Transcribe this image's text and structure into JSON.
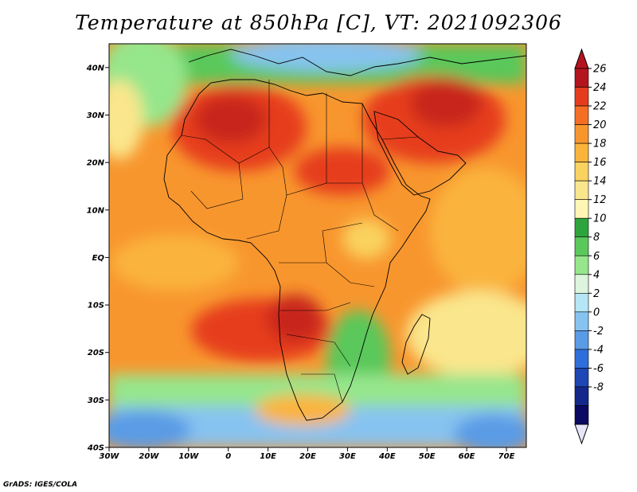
{
  "title": "Temperature at 850hPa [C], VT: 2021092306",
  "credit": "GrADS: IGES/COLA",
  "map": {
    "lon_range": [
      -30,
      75
    ],
    "lat_range": [
      -40,
      45
    ],
    "lat_ticks": [
      "40N",
      "30N",
      "20N",
      "10N",
      "EQ",
      "10S",
      "20S",
      "30S",
      "40S"
    ],
    "lon_ticks": [
      "30W",
      "20W",
      "10W",
      "0",
      "10E",
      "20E",
      "30E",
      "40E",
      "50E",
      "60E",
      "70E"
    ]
  },
  "colorbar": {
    "levels": [
      "26",
      "24",
      "22",
      "20",
      "18",
      "16",
      "14",
      "12",
      "10",
      "8",
      "6",
      "4",
      "2",
      "0",
      "-2",
      "-4",
      "-6",
      "-8"
    ],
    "colors": [
      "#b4141e",
      "#e63c1e",
      "#f56e23",
      "#f8962e",
      "#fab43c",
      "#fad25f",
      "#fae68c",
      "#fff5b4",
      "#2ea53c",
      "#5ac85a",
      "#96e68c",
      "#dcf5dc",
      "#b4e6f5",
      "#87c3f0",
      "#5a9be6",
      "#2d6edc",
      "#1e46b4",
      "#14288c",
      "#0a0a64"
    ],
    "top_arrow_color": "#b4141e",
    "bottom_arrow_color": "#e6e6fa"
  }
}
